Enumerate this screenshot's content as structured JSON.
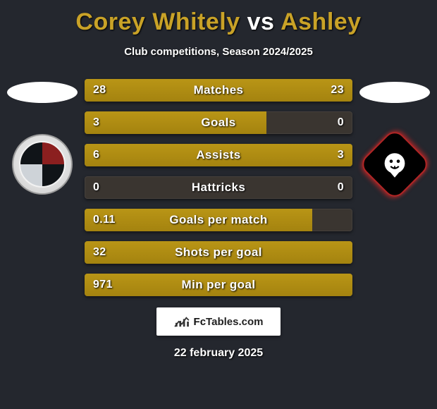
{
  "title": {
    "player_left": "Corey Whitely",
    "vs": "vs",
    "player_right": "Ashley",
    "color_accent": "#c9a227",
    "color_vs": "#ffffff"
  },
  "subtitle": "Club competitions, Season 2024/2025",
  "colors": {
    "background": "#24272e",
    "bar_fill": "#a98a12",
    "bar_track": "#3a3530",
    "text": "#ffffff"
  },
  "stats": [
    {
      "label": "Matches",
      "left_value": "28",
      "right_value": "23",
      "left_pct": 55,
      "right_pct": 45
    },
    {
      "label": "Goals",
      "left_value": "3",
      "right_value": "0",
      "left_pct": 68,
      "right_pct": 0
    },
    {
      "label": "Assists",
      "left_value": "6",
      "right_value": "3",
      "left_pct": 65,
      "right_pct": 35
    },
    {
      "label": "Hattricks",
      "left_value": "0",
      "right_value": "0",
      "left_pct": 0,
      "right_pct": 0
    },
    {
      "label": "Goals per match",
      "left_value": "0.11",
      "right_value": "",
      "left_pct": 85,
      "right_pct": 0
    },
    {
      "label": "Shots per goal",
      "left_value": "32",
      "right_value": "",
      "left_pct": 100,
      "right_pct": 0
    },
    {
      "label": "Min per goal",
      "left_value": "971",
      "right_value": "",
      "left_pct": 100,
      "right_pct": 0
    }
  ],
  "brand": {
    "text_prefix": "Fc",
    "text_suffix": "Tables.com"
  },
  "date": "22 february 2025",
  "badges": {
    "left_name": "bromley-fc-badge",
    "right_name": "salford-city-badge"
  }
}
